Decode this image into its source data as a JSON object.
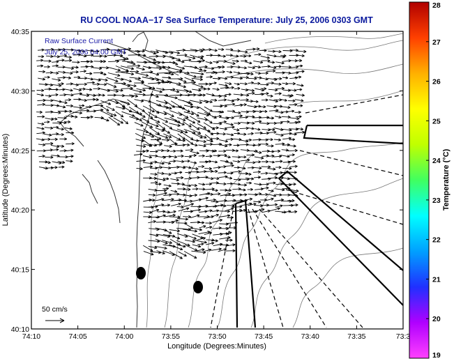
{
  "chart_data": {
    "type": "scatter",
    "subtype": "vector-field map",
    "title": "RU COOL  NOAA−17  Sea Surface Temperature:  July 25, 2006 0303 GMT",
    "xlabel": "Longitude (Degrees:Minutes)",
    "ylabel": "Latitude (Degrees:Minutes)",
    "x_ticks": [
      "74:10",
      "74:05",
      "74:00",
      "73:55",
      "73:50",
      "73:45",
      "73:40",
      "73:35",
      "73:3"
    ],
    "y_ticks": [
      "40:10",
      "40:15",
      "40:20",
      "40:25",
      "40:30",
      "40:35"
    ],
    "xlim_minutes_west": [
      10,
      33
    ],
    "ylim_minutes_north": [
      10,
      35
    ],
    "legend_lines": [
      "Raw Surface Current",
      "July 25, 2006 04:00 GMT"
    ],
    "scale_label": "50 cm/s",
    "colorbar": {
      "label": "Temperature (°C)",
      "min": 19,
      "max": 28,
      "ticks": [
        "19",
        "20",
        "21",
        "22",
        "23",
        "24",
        "25",
        "26",
        "27",
        "28"
      ],
      "colors": [
        "#ff40ff",
        "#b000ff",
        "#2030ff",
        "#00a0ff",
        "#00ffff",
        "#40ff60",
        "#c0ff00",
        "#ffff00",
        "#ffb000",
        "#ff4000",
        "#b00000"
      ]
    },
    "buoys": [
      {
        "lon": "74:01",
        "lat": "40:14.8"
      },
      {
        "lon": "73:57",
        "lat": "40:13.7"
      }
    ],
    "grid": false
  }
}
